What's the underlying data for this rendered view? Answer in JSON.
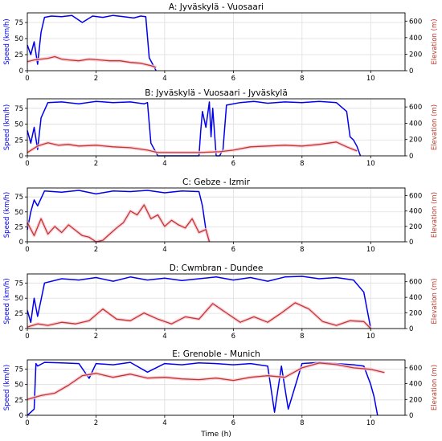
{
  "figure": {
    "x_axis_label": "Time (h)"
  },
  "chart_data": [
    {
      "type": "line",
      "title": "A: Jyväskylä - Vuosaari",
      "xlabel": "",
      "ylabel": "Speed (km/h)",
      "ylabel_right": "Elevation (m)",
      "xlim": [
        0,
        11
      ],
      "ylim": [
        0,
        90
      ],
      "ylim_right": [
        0,
        700
      ],
      "x_ticks": [
        0,
        2,
        4,
        6,
        8,
        10
      ],
      "y_ticks": [
        0,
        25,
        50,
        75
      ],
      "y_ticks_right": [
        0,
        200,
        400,
        600
      ],
      "grid": true,
      "series": [
        {
          "axis": "left",
          "color": "#0000ee",
          "x": [
            0,
            0.1,
            0.2,
            0.3,
            0.4,
            0.5,
            0.7,
            1.0,
            1.3,
            1.6,
            1.9,
            2.2,
            2.5,
            2.8,
            3.1,
            3.3,
            3.45,
            3.55,
            3.65,
            3.75
          ],
          "y": [
            40,
            25,
            45,
            10,
            60,
            83,
            85,
            84,
            86,
            75,
            85,
            83,
            86,
            84,
            82,
            85,
            84,
            20,
            10,
            0
          ]
        },
        {
          "axis": "right",
          "color": "#c0392b",
          "x": [
            0,
            0.2,
            0.4,
            0.6,
            0.8,
            1.0,
            1.2,
            1.5,
            1.8,
            2.1,
            2.4,
            2.7,
            3.0,
            3.3,
            3.6,
            3.75
          ],
          "y": [
            110,
            130,
            140,
            150,
            170,
            140,
            130,
            120,
            140,
            130,
            120,
            120,
            100,
            90,
            60,
            40
          ]
        }
      ]
    },
    {
      "type": "line",
      "title": "B: Jyväskylä - Vuosaari - Jyväskylä",
      "xlabel": "",
      "ylabel": "Speed (km/h)",
      "ylabel_right": "Elevation (m)",
      "xlim": [
        0,
        11
      ],
      "ylim": [
        0,
        90
      ],
      "ylim_right": [
        0,
        700
      ],
      "x_ticks": [
        0,
        2,
        4,
        6,
        8,
        10
      ],
      "y_ticks": [
        0,
        25,
        50,
        75
      ],
      "y_ticks_right": [
        0,
        200,
        400,
        600
      ],
      "grid": true,
      "series": [
        {
          "axis": "left",
          "color": "#0000ee",
          "x": [
            0,
            0.1,
            0.2,
            0.3,
            0.4,
            0.6,
            1.0,
            1.5,
            2.0,
            2.5,
            3.0,
            3.4,
            3.5,
            3.6,
            3.7,
            3.8,
            5.0,
            5.05,
            5.1,
            5.2,
            5.3,
            5.35,
            5.4,
            5.5,
            5.6,
            5.7,
            5.8,
            6.2,
            6.6,
            7.0,
            7.5,
            8.0,
            8.5,
            9.0,
            9.3,
            9.4,
            9.5,
            9.6,
            9.7
          ],
          "y": [
            40,
            20,
            45,
            10,
            60,
            84,
            85,
            82,
            86,
            84,
            85,
            82,
            84,
            20,
            10,
            0,
            0,
            40,
            70,
            45,
            85,
            30,
            75,
            0,
            0,
            10,
            80,
            84,
            86,
            83,
            85,
            84,
            86,
            84,
            70,
            30,
            25,
            15,
            0
          ]
        },
        {
          "axis": "right",
          "color": "#c0392b",
          "x": [
            0,
            0.3,
            0.6,
            0.9,
            1.2,
            1.5,
            2.0,
            2.5,
            3.0,
            3.5,
            3.8,
            5.0,
            5.6,
            6.0,
            6.5,
            7.0,
            7.5,
            8.0,
            8.5,
            9.0,
            9.3,
            9.6
          ],
          "y": [
            40,
            120,
            160,
            130,
            140,
            120,
            130,
            110,
            100,
            70,
            40,
            40,
            50,
            70,
            110,
            120,
            130,
            120,
            140,
            170,
            110,
            60
          ]
        }
      ]
    },
    {
      "type": "line",
      "title": "C: Gebze - Izmir",
      "xlabel": "",
      "ylabel": "Speed (km/h)",
      "ylabel_right": "Elevation (m)",
      "xlim": [
        0,
        11
      ],
      "ylim": [
        0,
        90
      ],
      "ylim_right": [
        0,
        700
      ],
      "x_ticks": [
        0,
        2,
        4,
        6,
        8,
        10
      ],
      "y_ticks": [
        0,
        25,
        50,
        75
      ],
      "y_ticks_right": [
        0,
        200,
        400,
        600
      ],
      "grid": true,
      "series": [
        {
          "axis": "left",
          "color": "#0000ee",
          "x": [
            0,
            0.1,
            0.2,
            0.3,
            0.5,
            1.0,
            1.5,
            2.0,
            2.5,
            3.0,
            3.5,
            4.0,
            4.5,
            5.0,
            5.1,
            5.2,
            5.3
          ],
          "y": [
            20,
            50,
            70,
            60,
            85,
            83,
            86,
            80,
            85,
            84,
            86,
            82,
            85,
            84,
            60,
            20,
            0
          ]
        },
        {
          "axis": "right",
          "color": "#c0392b",
          "x": [
            0,
            0.2,
            0.4,
            0.6,
            0.8,
            1.0,
            1.2,
            1.4,
            1.6,
            1.8,
            2.0,
            2.2,
            2.4,
            2.6,
            2.8,
            3.0,
            3.2,
            3.4,
            3.6,
            3.8,
            4.0,
            4.2,
            4.4,
            4.6,
            4.8,
            5.0,
            5.2,
            5.3
          ],
          "y": [
            250,
            80,
            300,
            100,
            200,
            120,
            220,
            150,
            80,
            60,
            0,
            20,
            100,
            180,
            250,
            400,
            350,
            480,
            300,
            350,
            200,
            280,
            220,
            180,
            300,
            120,
            160,
            0
          ]
        }
      ]
    },
    {
      "type": "line",
      "title": "D: Cwmbran - Dundee",
      "xlabel": "",
      "ylabel": "Speed (km/h)",
      "ylabel_right": "Elevation (m)",
      "xlim": [
        0,
        11
      ],
      "ylim": [
        0,
        90
      ],
      "ylim_right": [
        0,
        700
      ],
      "x_ticks": [
        0,
        2,
        4,
        6,
        8,
        10
      ],
      "y_ticks": [
        0,
        25,
        50,
        75
      ],
      "y_ticks_right": [
        0,
        200,
        400,
        600
      ],
      "grid": true,
      "series": [
        {
          "axis": "left",
          "color": "#0000ee",
          "x": [
            0,
            0.1,
            0.2,
            0.3,
            0.5,
            1.0,
            1.5,
            2.0,
            2.5,
            3.0,
            3.5,
            4.0,
            4.5,
            5.0,
            5.5,
            6.0,
            6.5,
            7.0,
            7.5,
            8.0,
            8.5,
            9.0,
            9.5,
            9.8,
            9.9,
            10.0
          ],
          "y": [
            30,
            10,
            50,
            20,
            75,
            82,
            80,
            84,
            78,
            85,
            80,
            83,
            79,
            82,
            85,
            80,
            84,
            78,
            85,
            86,
            82,
            84,
            80,
            60,
            30,
            0
          ]
        },
        {
          "axis": "right",
          "color": "#c0392b",
          "x": [
            0,
            0.3,
            0.6,
            1.0,
            1.4,
            1.8,
            2.2,
            2.6,
            3.0,
            3.4,
            3.8,
            4.2,
            4.6,
            5.0,
            5.4,
            5.8,
            6.2,
            6.6,
            7.0,
            7.4,
            7.8,
            8.2,
            8.6,
            9.0,
            9.4,
            9.8,
            10.0
          ],
          "y": [
            20,
            60,
            40,
            80,
            60,
            100,
            250,
            120,
            100,
            200,
            120,
            60,
            150,
            120,
            320,
            200,
            80,
            150,
            80,
            200,
            330,
            250,
            90,
            40,
            100,
            90,
            0
          ]
        }
      ]
    },
    {
      "type": "line",
      "title": "E: Grenoble - Munich",
      "xlabel": "Time (h)",
      "ylabel": "Speed (km/h)",
      "ylabel_right": "Elevation (m)",
      "xlim": [
        0,
        11
      ],
      "ylim": [
        0,
        90
      ],
      "ylim_right": [
        0,
        700
      ],
      "x_ticks": [
        0,
        2,
        4,
        6,
        8,
        10
      ],
      "y_ticks": [
        0,
        25,
        50,
        75
      ],
      "y_ticks_right": [
        0,
        200,
        400,
        600
      ],
      "grid": true,
      "series": [
        {
          "axis": "left",
          "color": "#0000ee",
          "x": [
            0,
            0.1,
            0.2,
            0.25,
            0.3,
            0.5,
            1.0,
            1.5,
            1.8,
            2.0,
            2.5,
            3.0,
            3.5,
            4.0,
            4.5,
            5.0,
            5.5,
            6.0,
            6.5,
            7.0,
            7.2,
            7.4,
            7.6,
            8.0,
            8.5,
            9.0,
            9.5,
            9.8,
            10.0,
            10.1,
            10.2
          ],
          "y": [
            0,
            5,
            10,
            84,
            80,
            86,
            85,
            84,
            60,
            84,
            82,
            86,
            70,
            84,
            82,
            85,
            84,
            82,
            84,
            80,
            5,
            80,
            10,
            84,
            86,
            84,
            82,
            80,
            50,
            30,
            0
          ]
        },
        {
          "axis": "right",
          "color": "#c0392b",
          "x": [
            0,
            0.4,
            0.8,
            1.2,
            1.6,
            2.0,
            2.5,
            3.0,
            3.5,
            4.0,
            4.5,
            5.0,
            5.5,
            6.0,
            6.5,
            7.0,
            7.5,
            8.0,
            8.5,
            9.0,
            9.5,
            10.0,
            10.4
          ],
          "y": [
            200,
            250,
            280,
            380,
            500,
            530,
            480,
            520,
            470,
            480,
            460,
            450,
            470,
            440,
            480,
            500,
            480,
            600,
            660,
            640,
            600,
            580,
            540
          ]
        }
      ]
    }
  ]
}
